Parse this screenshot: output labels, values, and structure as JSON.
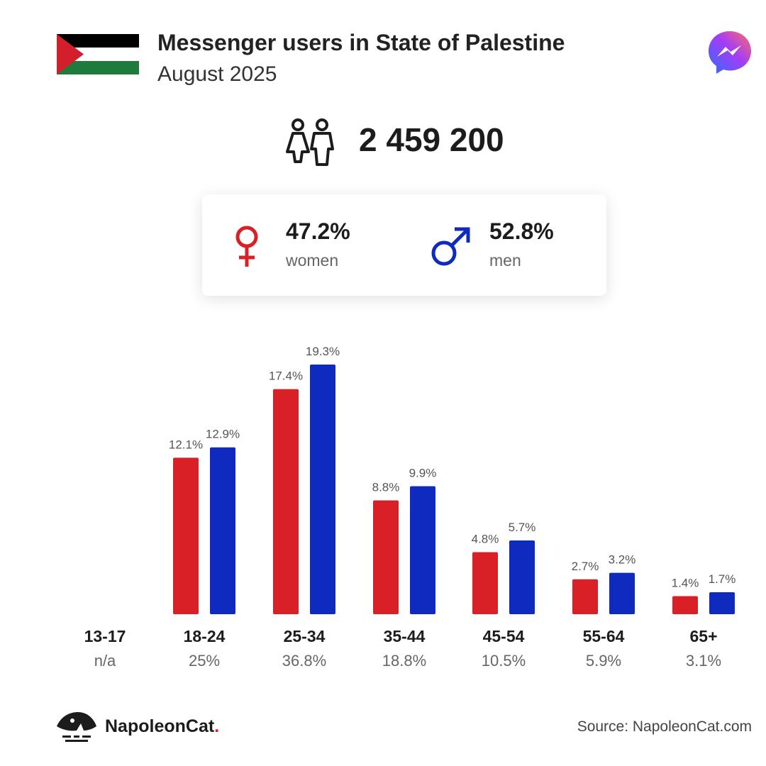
{
  "header": {
    "title": "Messenger users in State of Palestine",
    "subtitle": "August 2025",
    "flag_icon": "palestine-flag",
    "app_icon": "messenger-logo"
  },
  "total": {
    "icon": "people-icon",
    "value": "2 459 200"
  },
  "gender": {
    "women": {
      "percent": "47.2%",
      "label": "women",
      "icon": "female-symbol-icon",
      "color": "#d92027"
    },
    "men": {
      "percent": "52.8%",
      "label": "men",
      "icon": "male-symbol-icon",
      "color": "#0f2bbf"
    }
  },
  "chart_data": {
    "type": "bar",
    "categories": [
      "13-17",
      "18-24",
      "25-34",
      "35-44",
      "45-54",
      "55-64",
      "65+"
    ],
    "category_shares": [
      "n/a",
      "25%",
      "36.8%",
      "18.8%",
      "10.5%",
      "5.9%",
      "3.1%"
    ],
    "series": [
      {
        "name": "women",
        "color": "#d92027",
        "values": [
          null,
          12.1,
          17.4,
          8.8,
          4.8,
          2.7,
          1.4
        ],
        "labels": [
          "",
          "12.1%",
          "17.4%",
          "8.8%",
          "4.8%",
          "2.7%",
          "1.4%"
        ]
      },
      {
        "name": "men",
        "color": "#0f2bbf",
        "values": [
          null,
          12.9,
          19.3,
          9.9,
          5.7,
          3.2,
          1.7
        ],
        "labels": [
          "",
          "12.9%",
          "19.3%",
          "9.9%",
          "5.7%",
          "3.2%",
          "1.7%"
        ]
      }
    ],
    "ylim": [
      0,
      19.3
    ],
    "grid": false,
    "legend": "none"
  },
  "footer": {
    "brand_name": "NapoleonCat",
    "brand_dot": ".",
    "brand_icon": "napoleoncat-logo",
    "source": "Source: NapoleonCat.com"
  }
}
